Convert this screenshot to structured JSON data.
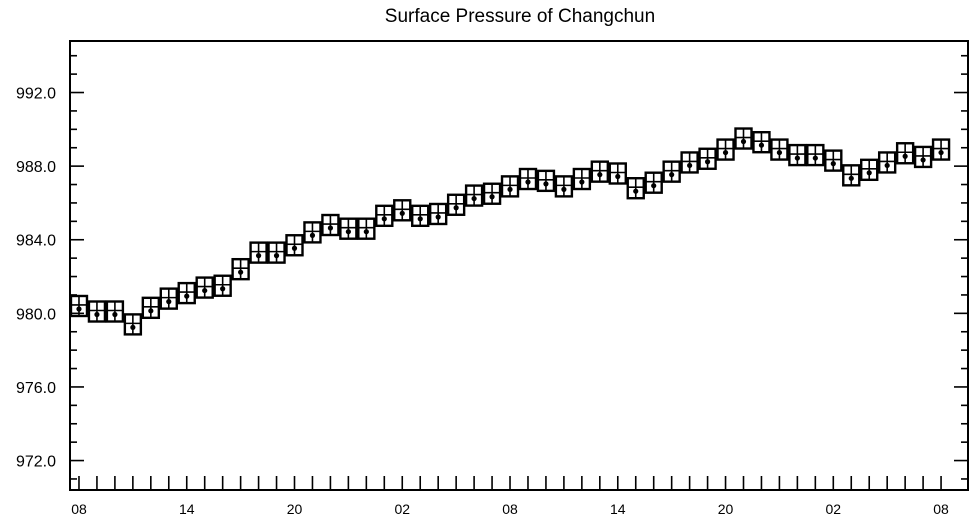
{
  "chart_data": {
    "type": "line",
    "title": "Surface Pressure of Changchun",
    "xlabel": "",
    "ylabel": "",
    "ylim": [
      970.4,
      994.8
    ],
    "yticks": [
      {
        "value": 972.0,
        "label": "972.0"
      },
      {
        "value": 976.0,
        "label": "976.0"
      },
      {
        "value": 980.0,
        "label": "980.0"
      },
      {
        "value": 984.0,
        "label": "984.0"
      },
      {
        "value": 988.0,
        "label": "988.0"
      },
      {
        "value": 992.0,
        "label": "992.0"
      }
    ],
    "xlim": [
      -0.5,
      49.5
    ],
    "xticks": [
      {
        "index": 0,
        "label": "08"
      },
      {
        "index": 6,
        "label": "14"
      },
      {
        "index": 12,
        "label": "20"
      },
      {
        "index": 18,
        "label": "02"
      },
      {
        "index": 24,
        "label": "08"
      },
      {
        "index": 30,
        "label": "14"
      },
      {
        "index": 36,
        "label": "20"
      },
      {
        "index": 42,
        "label": "02"
      },
      {
        "index": 48,
        "label": "08"
      }
    ],
    "series": [
      {
        "marker": "boxed-cross-station-glyph",
        "values": [
          980.4,
          980.1,
          980.1,
          979.4,
          980.3,
          980.8,
          981.1,
          981.4,
          981.5,
          982.4,
          983.3,
          983.3,
          983.7,
          984.4,
          984.8,
          984.6,
          984.6,
          985.3,
          985.6,
          985.3,
          985.4,
          985.9,
          986.4,
          986.5,
          986.9,
          987.3,
          987.2,
          986.9,
          987.3,
          987.7,
          987.6,
          986.8,
          987.1,
          987.7,
          988.2,
          988.4,
          988.9,
          989.5,
          989.3,
          988.9,
          988.6,
          988.6,
          988.3,
          987.5,
          987.8,
          988.2,
          988.7,
          988.5,
          988.9
        ]
      }
    ]
  }
}
